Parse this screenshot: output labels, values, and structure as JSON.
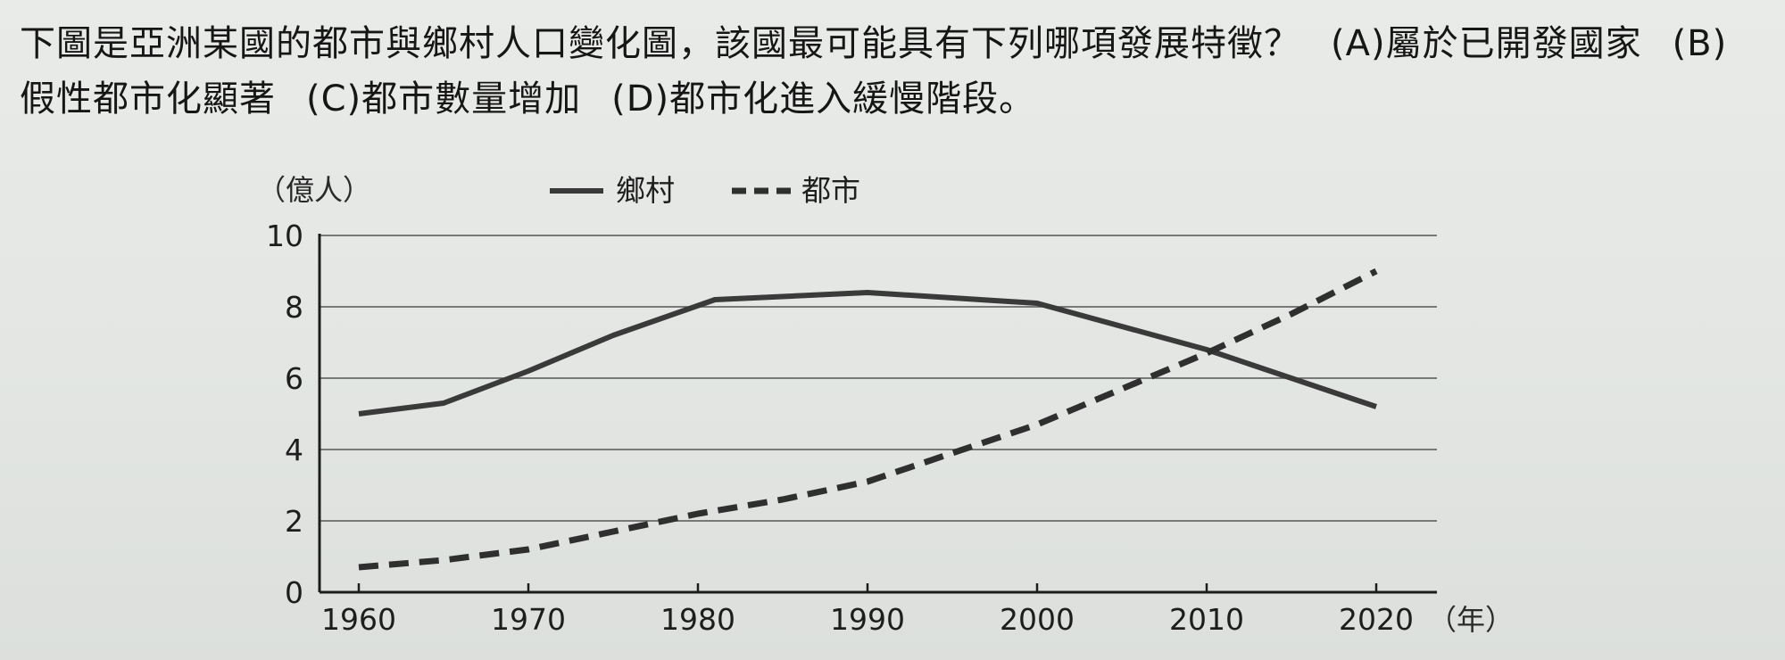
{
  "question": {
    "stem": "下圖是亞洲某國的都市與鄉村人口變化圖，該國最可能具有下列哪項發展特徵？",
    "options": [
      "(A)屬於已開發國家",
      "(B)假性都市化顯著",
      "(C)都市數量增加",
      "(D)都市化進入緩慢階段。"
    ]
  },
  "colors": {
    "rural_line": "#3a3a3a",
    "urban_line": "#2f2f2f",
    "gridline": "#555555",
    "axis": "#1d1d1d"
  },
  "chart_data": {
    "type": "line",
    "ylabel": "（億人）",
    "xlabel": "（年）",
    "ylim": [
      0,
      10
    ],
    "xlim": [
      1960,
      2020
    ],
    "yticks": [
      "0",
      "2",
      "4",
      "6",
      "8",
      "10"
    ],
    "xticks": [
      "1960",
      "1970",
      "1980",
      "1990",
      "2000",
      "2010",
      "2020"
    ],
    "grid": "horizontal",
    "legend": "top",
    "series": [
      {
        "name": "鄉村",
        "style": "solid",
        "x": [
          1960,
          1965,
          1970,
          1975,
          1981,
          1990,
          2000,
          2010,
          2020
        ],
        "y": [
          5.0,
          5.3,
          6.2,
          7.2,
          8.2,
          8.4,
          8.1,
          6.8,
          5.2
        ]
      },
      {
        "name": "都市",
        "style": "dashed",
        "x": [
          1960,
          1965,
          1970,
          1975,
          1980,
          1985,
          1990,
          1995,
          2000,
          2005,
          2010,
          2015,
          2020
        ],
        "y": [
          0.7,
          0.9,
          1.2,
          1.7,
          2.2,
          2.6,
          3.1,
          3.9,
          4.7,
          5.7,
          6.7,
          7.8,
          9.0
        ]
      }
    ]
  }
}
